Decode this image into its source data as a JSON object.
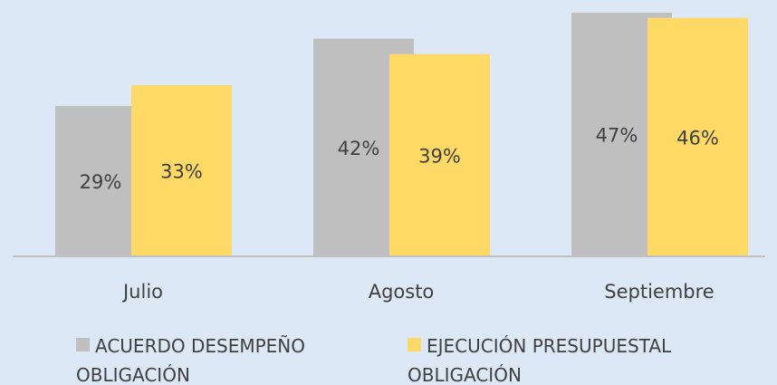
{
  "chart_data": {
    "type": "bar",
    "categories": [
      "Julio",
      "Agosto",
      "Septiembre"
    ],
    "series": [
      {
        "name": "ACUERDO DESEMPEÑO OBLIGACIÓN",
        "color": "#bfbfbf",
        "values": [
          29,
          42,
          47
        ],
        "value_labels": [
          "29%",
          "42%",
          "47%"
        ]
      },
      {
        "name": "EJECUCIÓN PRESUPUESTAL OBLIGACIÓN",
        "color": "#ffd966",
        "values": [
          33,
          39,
          46
        ],
        "value_labels": [
          "33%",
          "39%",
          "46%"
        ]
      }
    ],
    "legend": "bottom"
  }
}
